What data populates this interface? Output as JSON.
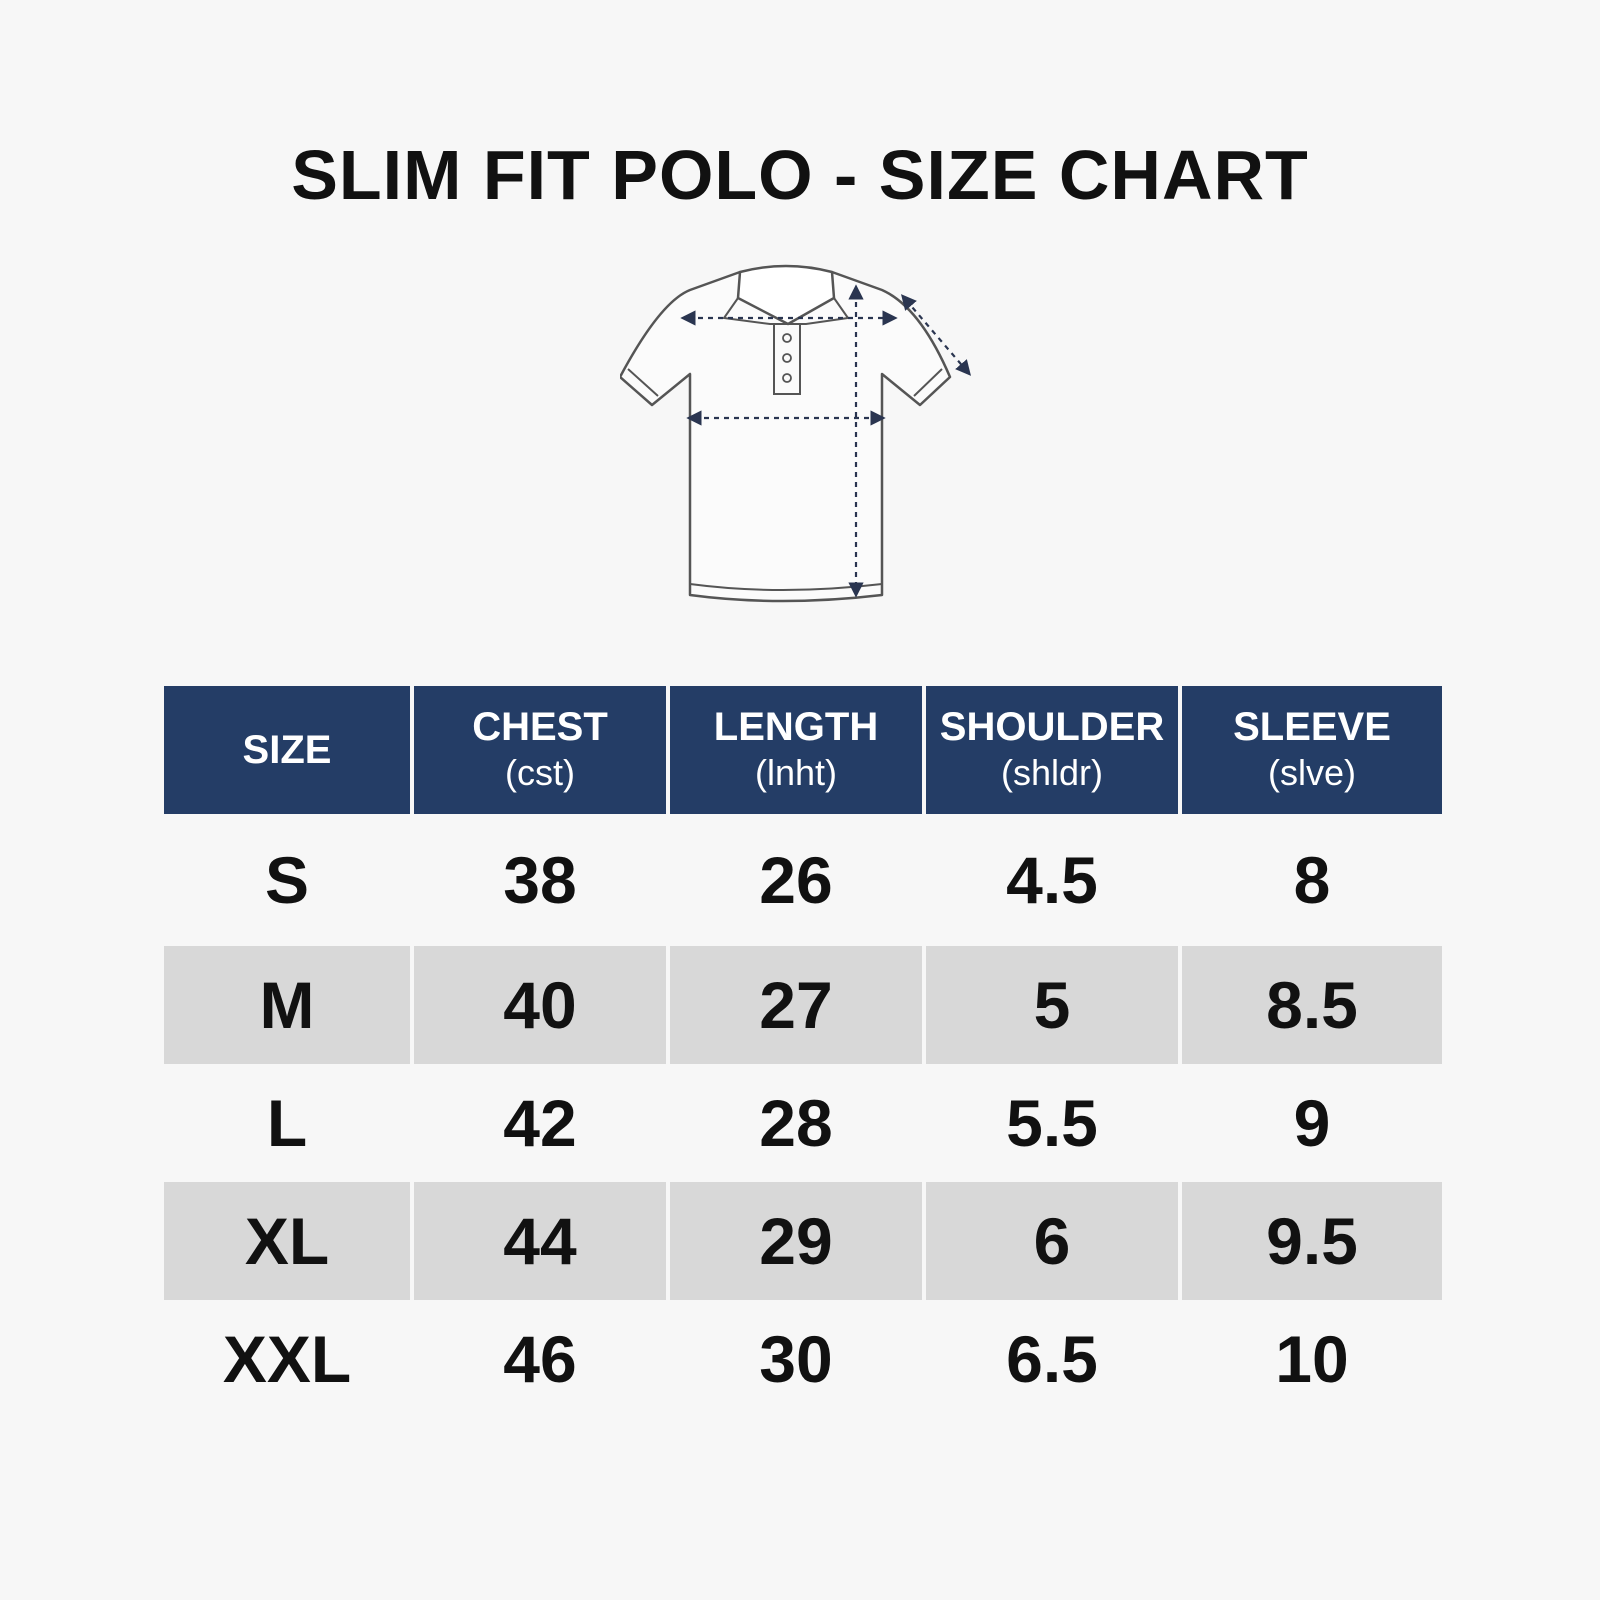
{
  "page": {
    "title": "SLIM FIT POLO - SIZE CHART"
  },
  "illustration": {
    "icon": "polo-shirt-icon",
    "stroke_color": "#555555",
    "arrow_color": "#2a3550"
  },
  "colors": {
    "header_background": "#243d66",
    "header_text": "#ffffff",
    "alt_row_background": "#d8d8d8",
    "page_background": "#f7f7f7"
  },
  "table": {
    "headers": [
      {
        "label": "SIZE",
        "sub": ""
      },
      {
        "label": "CHEST",
        "sub": "(cst)"
      },
      {
        "label": "LENGTH",
        "sub": "(lnht)"
      },
      {
        "label": "SHOULDER",
        "sub": "(shldr)"
      },
      {
        "label": "SLEEVE",
        "sub": "(slve)"
      }
    ],
    "rows": [
      [
        "S",
        "38",
        "26",
        "4.5",
        "8"
      ],
      [
        "M",
        "40",
        "27",
        "5",
        "8.5"
      ],
      [
        "L",
        "42",
        "28",
        "5.5",
        "9"
      ],
      [
        "XL",
        "44",
        "29",
        "6",
        "9.5"
      ],
      [
        "XXL",
        "46",
        "30",
        "6.5",
        "10"
      ]
    ]
  }
}
